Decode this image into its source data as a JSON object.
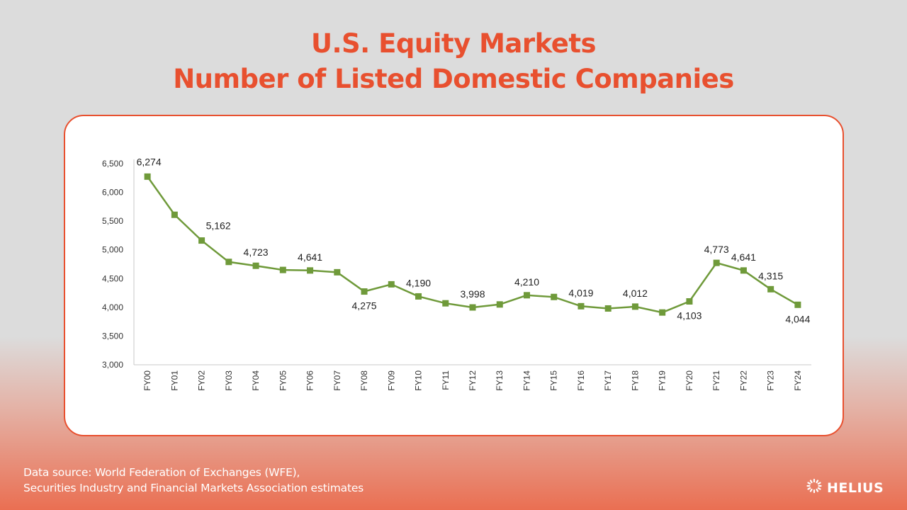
{
  "header": {
    "title_line1": "U.S. Equity Markets",
    "title_line2": "Number of Listed Domestic Companies"
  },
  "footer": {
    "source_line1": "Data source: World Federation of Exchanges (WFE),",
    "source_line2": "Securities Industry and Financial Markets Association estimates",
    "brand": "HELIUS"
  },
  "colors": {
    "accent": "#e8502f",
    "series": "#6f9a3a"
  },
  "icons": {
    "brand_logo": "helius-logo-icon"
  },
  "chart_data": {
    "type": "line",
    "title": "",
    "xlabel": "",
    "ylabel": "",
    "ylim": [
      3000,
      6500
    ],
    "yticks": [
      3000,
      3500,
      4000,
      4500,
      5000,
      5500,
      6000,
      6500
    ],
    "ytick_labels": [
      "3,000",
      "3,500",
      "4,000",
      "4,500",
      "5,000",
      "5,500",
      "6,000",
      "6,500"
    ],
    "grid": false,
    "legend": "none",
    "categories": [
      "FY00",
      "FY01",
      "FY02",
      "FY03",
      "FY04",
      "FY05",
      "FY06",
      "FY07",
      "FY08",
      "FY09",
      "FY10",
      "FY11",
      "FY12",
      "FY13",
      "FY14",
      "FY15",
      "FY16",
      "FY17",
      "FY18",
      "FY19",
      "FY20",
      "FY21",
      "FY22",
      "FY23",
      "FY24"
    ],
    "series": [
      {
        "values": [
          6274,
          5610,
          5162,
          4790,
          4723,
          4650,
          4641,
          4610,
          4275,
          4400,
          4190,
          4070,
          3998,
          4050,
          4210,
          4180,
          4019,
          3980,
          4012,
          3910,
          4103,
          4773,
          4641,
          4315,
          4044
        ]
      }
    ],
    "data_labels": [
      {
        "index": 0,
        "text": "6,274",
        "pos": "above"
      },
      {
        "index": 2,
        "text": "5,162",
        "pos": "above-right"
      },
      {
        "index": 4,
        "text": "4,723",
        "pos": "above"
      },
      {
        "index": 6,
        "text": "4,641",
        "pos": "above"
      },
      {
        "index": 8,
        "text": "4,275",
        "pos": "below"
      },
      {
        "index": 10,
        "text": "4,190",
        "pos": "above"
      },
      {
        "index": 12,
        "text": "3,998",
        "pos": "above"
      },
      {
        "index": 14,
        "text": "4,210",
        "pos": "above"
      },
      {
        "index": 16,
        "text": "4,019",
        "pos": "above"
      },
      {
        "index": 18,
        "text": "4,012",
        "pos": "above"
      },
      {
        "index": 20,
        "text": "4,103",
        "pos": "below"
      },
      {
        "index": 21,
        "text": "4,773",
        "pos": "above"
      },
      {
        "index": 22,
        "text": "4,641",
        "pos": "above"
      },
      {
        "index": 23,
        "text": "4,315",
        "pos": "above"
      },
      {
        "index": 24,
        "text": "4,044",
        "pos": "below"
      }
    ]
  }
}
